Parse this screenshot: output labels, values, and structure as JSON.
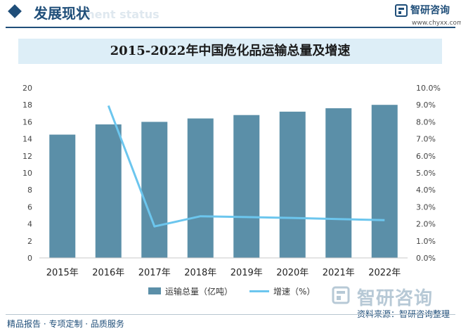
{
  "header": {
    "section_title": "发展现状",
    "section_subtitle": "ment status",
    "brand_name": "智研咨询",
    "brand_url": "www.chyxx.com"
  },
  "chart_data": {
    "type": "bar",
    "title": "2015-2022年中国危化品运输总量及增速",
    "categories": [
      "2015年",
      "2016年",
      "2017年",
      "2018年",
      "2019年",
      "2020年",
      "2021年",
      "2022年"
    ],
    "series": [
      {
        "name": "运输总量（亿吨）",
        "type": "bar",
        "axis": "left",
        "color": "#5b8fa8",
        "values": [
          14.5,
          15.7,
          16.0,
          16.4,
          16.8,
          17.2,
          17.6,
          18.0
        ]
      },
      {
        "name": "增速（%）",
        "type": "line",
        "axis": "right",
        "color": "#6cc6ee",
        "values": [
          null,
          8.95,
          1.85,
          2.45,
          2.4,
          2.35,
          2.28,
          2.22
        ]
      }
    ],
    "ylim": [
      0,
      20
    ],
    "y_ticks": [
      "0",
      "2",
      "4",
      "6",
      "8",
      "10",
      "12",
      "14",
      "16",
      "18",
      "20"
    ],
    "y2lim": [
      0,
      10
    ],
    "y2_ticks": [
      "0.0%",
      "1.0%",
      "2.0%",
      "3.0%",
      "4.0%",
      "5.0%",
      "6.0%",
      "7.0%",
      "8.0%",
      "9.0%",
      "10.0%"
    ],
    "grid": false,
    "legend": "bottom"
  },
  "footer": {
    "tagline": "精品报告 · 专项定制 · 品质服务",
    "brand": "智研咨询",
    "source": "资料来源：智研咨询整理"
  }
}
